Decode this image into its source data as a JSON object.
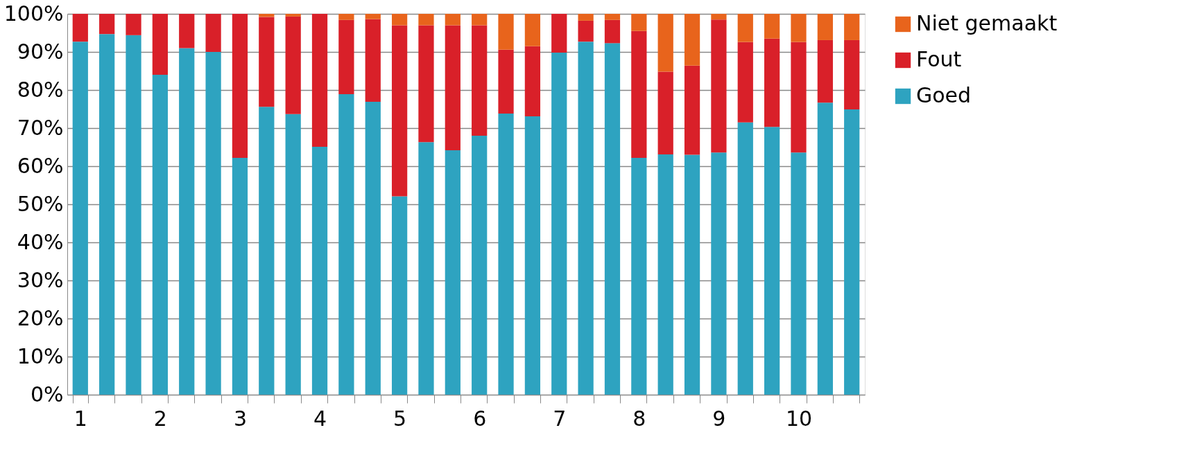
{
  "chart_data": {
    "type": "bar",
    "stacked": true,
    "categories": [
      "1",
      null,
      null,
      "2",
      null,
      null,
      "3",
      null,
      null,
      "4",
      null,
      null,
      "5",
      null,
      null,
      "6",
      null,
      null,
      "7",
      null,
      null,
      "8",
      null,
      null,
      "9",
      null,
      null,
      "10",
      null,
      null
    ],
    "series": [
      {
        "name": "Goed",
        "color": "#2ea3c0",
        "values": [
          92.7,
          94.7,
          94.4,
          84.0,
          91.0,
          90.0,
          62.2,
          75.6,
          73.7,
          65.1,
          78.9,
          76.9,
          52.1,
          66.3,
          64.2,
          68.0,
          73.8,
          73.1,
          89.8,
          92.7,
          92.3,
          62.2,
          63.1,
          63.0,
          63.6,
          71.5,
          70.3,
          63.6,
          76.7,
          74.9
        ]
      },
      {
        "name": "Fout",
        "color": "#d92029",
        "values": [
          7.3,
          5.3,
          5.6,
          16.0,
          9.0,
          10.0,
          37.8,
          23.6,
          25.6,
          34.9,
          19.5,
          21.7,
          44.9,
          30.7,
          32.8,
          29.0,
          16.8,
          18.4,
          10.2,
          5.5,
          6.1,
          33.3,
          21.7,
          23.4,
          34.9,
          21.1,
          23.2,
          29.0,
          16.4,
          18.2
        ]
      },
      {
        "name": "Niet gemaakt",
        "color": "#e8641c",
        "values": [
          0,
          0,
          0,
          0,
          0,
          0,
          0,
          0.8,
          0.7,
          0,
          1.6,
          1.4,
          3.0,
          3.0,
          3.0,
          3.0,
          9.4,
          8.5,
          0,
          1.8,
          1.6,
          4.5,
          15.2,
          13.6,
          1.5,
          7.4,
          6.5,
          7.4,
          6.9,
          6.9
        ]
      }
    ],
    "ylim": [
      0,
      100
    ],
    "yticks": [
      {
        "value": 0,
        "label": "0%"
      },
      {
        "value": 10,
        "label": "10%"
      },
      {
        "value": 20,
        "label": "20%"
      },
      {
        "value": 30,
        "label": "30%"
      },
      {
        "value": 40,
        "label": "40%"
      },
      {
        "value": 50,
        "label": "50%"
      },
      {
        "value": 60,
        "label": "60%"
      },
      {
        "value": 70,
        "label": "70%"
      },
      {
        "value": 80,
        "label": "80%"
      },
      {
        "value": 90,
        "label": "90%"
      },
      {
        "value": 100,
        "label": "100%"
      }
    ],
    "grid": "y",
    "legend": "right"
  }
}
